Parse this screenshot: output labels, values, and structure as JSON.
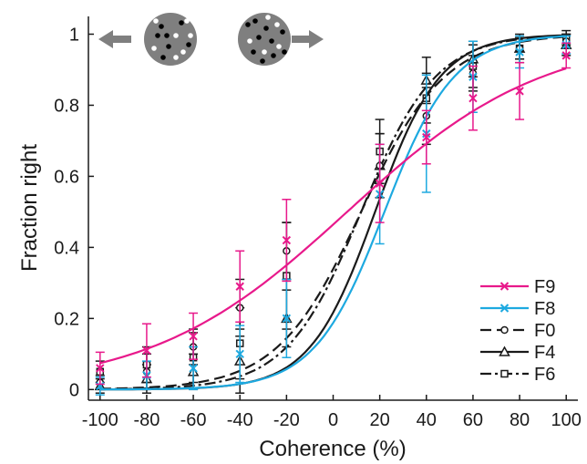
{
  "chart_data": {
    "type": "line",
    "title": "",
    "xlabel": "Coherence (%)",
    "ylabel": "Fraction right",
    "xlim": [
      -105,
      105
    ],
    "ylim": [
      -0.03,
      1.05
    ],
    "xticks": [
      "-100",
      "-80",
      "-60",
      "-40",
      "-20",
      "0",
      "20",
      "40",
      "60",
      "80",
      "100"
    ],
    "yticks": [
      "0",
      "0.2",
      "0.4",
      "0.6",
      "0.8",
      "1"
    ],
    "legend_position": "bottom-right",
    "inset_icons": [
      {
        "name": "left-arrow-icon",
        "dots": "mostly black"
      },
      {
        "name": "right-arrow-icon",
        "dots": "mixed"
      }
    ],
    "series": [
      {
        "name": "F9",
        "color": "#e8198b",
        "dash": "solid",
        "marker": "x",
        "x": [
          -100,
          -80,
          -60,
          -40,
          -20,
          20,
          40,
          60,
          80,
          100
        ],
        "y": [
          0.06,
          0.11,
          0.15,
          0.29,
          0.42,
          0.58,
          0.71,
          0.82,
          0.84,
          0.94
        ],
        "err": [
          0.045,
          0.075,
          0.065,
          0.1,
          0.115,
          0.11,
          0.075,
          0.09,
          0.08,
          0.035
        ],
        "fit": {
          "mu": 6,
          "s": 42
        }
      },
      {
        "name": "F8",
        "color": "#1da9e0",
        "dash": "solid",
        "marker": "x",
        "x": [
          -100,
          -80,
          -60,
          -40,
          -20,
          20,
          40,
          60,
          80,
          100
        ],
        "y": [
          0.01,
          0.04,
          0.06,
          0.1,
          0.2,
          0.55,
          0.72,
          0.88,
          0.95,
          0.97
        ],
        "err": [
          0.025,
          0.04,
          0.06,
          0.08,
          0.11,
          0.14,
          0.165,
          0.1,
          0.045,
          0.025
        ],
        "fit": {
          "mu": 22,
          "s": 15
        }
      },
      {
        "name": "F0",
        "color": "#1a1a1a",
        "dash": "12,6",
        "marker": "circle",
        "x": [
          -100,
          -80,
          -60,
          -40,
          -20,
          20,
          40,
          60,
          80,
          100
        ],
        "y": [
          0.02,
          0.05,
          0.12,
          0.23,
          0.39,
          0.63,
          0.77,
          0.89,
          0.96,
          0.98
        ],
        "err": [
          0.02,
          0.05,
          0.05,
          0.08,
          0.08,
          0.09,
          0.08,
          0.05,
          0.03,
          0.02
        ],
        "fit": {
          "mu": 12,
          "s": 18
        }
      },
      {
        "name": "F4",
        "color": "#1a1a1a",
        "dash": "solid",
        "marker": "triangle",
        "x": [
          -100,
          -80,
          -60,
          -40,
          -20,
          20,
          40,
          60,
          80,
          100
        ],
        "y": [
          0.01,
          0.03,
          0.05,
          0.08,
          0.2,
          0.63,
          0.87,
          0.93,
          0.96,
          0.97
        ],
        "err": [
          0.02,
          0.04,
          0.05,
          0.09,
          0.08,
          0.09,
          0.065,
          0.05,
          0.04,
          0.03
        ],
        "fit": {
          "mu": 18,
          "s": 14
        }
      },
      {
        "name": "F6",
        "color": "#1a1a1a",
        "dash": "12,4,3,4",
        "marker": "square",
        "x": [
          -100,
          -80,
          -60,
          -40,
          -20,
          20,
          40,
          60,
          80,
          100
        ],
        "y": [
          0.05,
          0.07,
          0.09,
          0.13,
          0.32,
          0.67,
          0.82,
          0.91,
          0.96,
          0.99
        ],
        "err": [
          0.03,
          0.05,
          0.07,
          0.1,
          0.15,
          0.09,
          0.07,
          0.06,
          0.03,
          0.02
        ],
        "fit": {
          "mu": 12,
          "s": 16
        }
      }
    ]
  }
}
